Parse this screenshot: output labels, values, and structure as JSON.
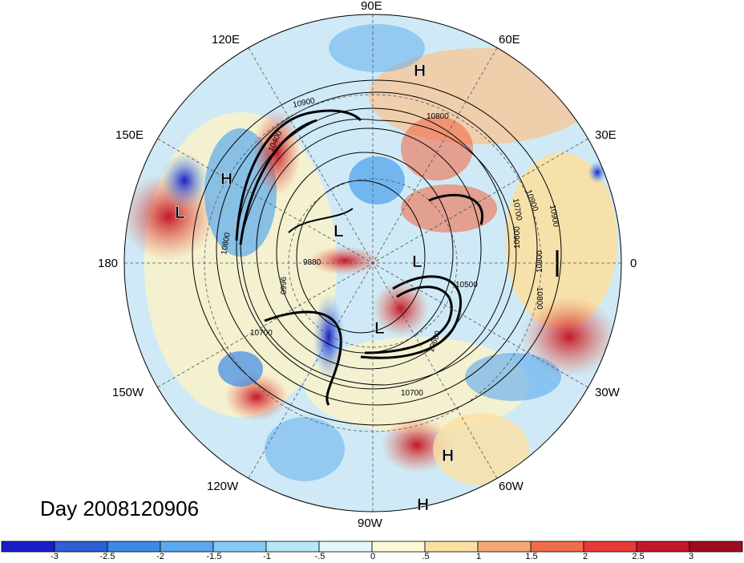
{
  "map": {
    "longitude_labels": [
      "90E",
      "60E",
      "30E",
      "0",
      "30W",
      "60W",
      "90W",
      "120W",
      "150W",
      "180",
      "150E",
      "120E"
    ],
    "day_label": "Day 2008120906",
    "contour_labels": [
      "10900",
      "10800",
      "10900",
      "10700",
      "10900",
      "10600",
      "10800",
      "10800",
      "10500",
      "9880",
      "9660",
      "10800",
      "10700",
      "10600",
      "10700",
      "10400"
    ],
    "pressure_centers": [
      {
        "kind": "H"
      },
      {
        "kind": "H"
      },
      {
        "kind": "L"
      },
      {
        "kind": "L"
      },
      {
        "kind": "L"
      },
      {
        "kind": "L"
      },
      {
        "kind": "H"
      },
      {
        "kind": "H"
      }
    ]
  },
  "colorbar": {
    "tick_labels": [
      "-3",
      "-2.5",
      "-2",
      "-1.5",
      "-1",
      "-.5",
      "0",
      ".5",
      "1",
      "1.5",
      "2",
      "2.5",
      "3"
    ],
    "colors": [
      "#1c1cc8",
      "#2e5fd6",
      "#3d8ae6",
      "#5aa9ee",
      "#86c9f5",
      "#b6e8f8",
      "#e4f8fb",
      "#fdf8d5",
      "#fbe0a2",
      "#f6a874",
      "#f06d4c",
      "#e53a36",
      "#c4182a",
      "#9c0d20"
    ]
  }
}
